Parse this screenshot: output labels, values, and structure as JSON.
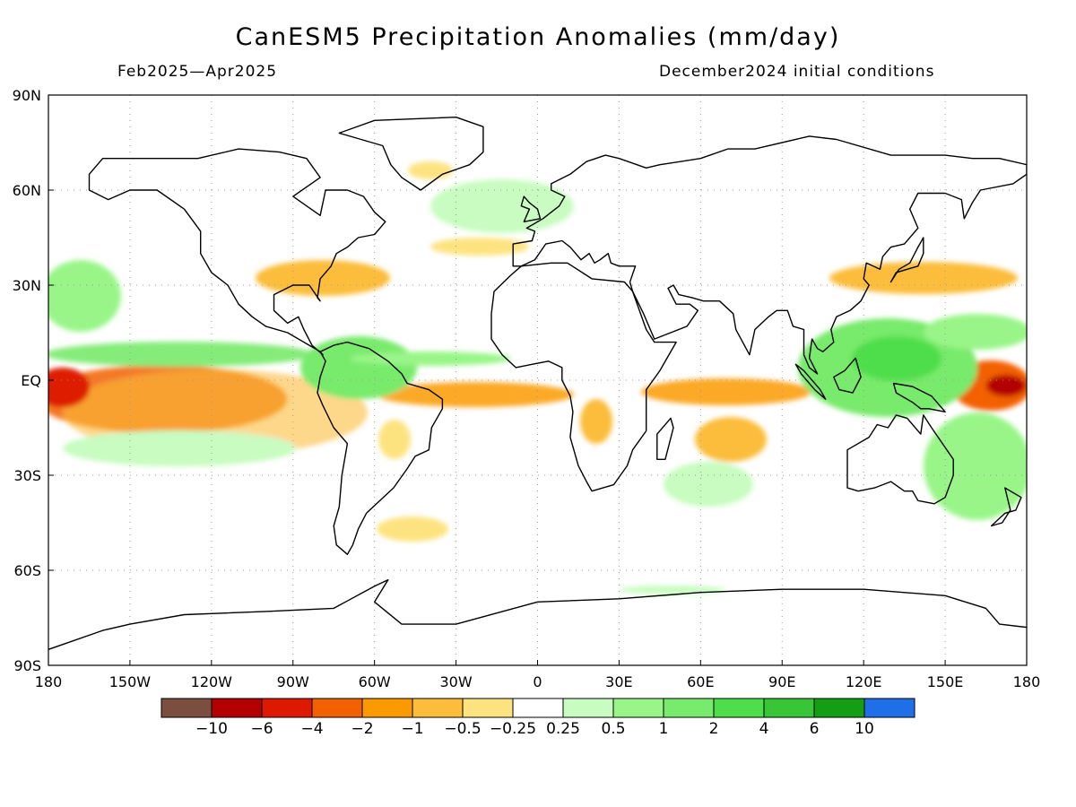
{
  "header": {
    "title": "CanESM5 Precipitation Anomalies (mm/day)",
    "period": "Feb2025—Apr2025",
    "initial_conditions": "December2024 initial conditions"
  },
  "map": {
    "projection": "equirectangular",
    "lon_range": [
      -180,
      180
    ],
    "lat_range": [
      -90,
      90
    ],
    "grid": "dotted",
    "lon_tick_labels": [
      "180",
      "150W",
      "120W",
      "90W",
      "60W",
      "30W",
      "0",
      "30E",
      "60E",
      "90E",
      "120E",
      "150E",
      "180"
    ],
    "lat_tick_labels": [
      "90N",
      "60N",
      "30N",
      "EQ",
      "30S",
      "60S",
      "90S"
    ],
    "anomaly_regions": [
      {
        "name": "central-pacific-dry",
        "lon": [
          -180,
          -120
        ],
        "lat": [
          -12,
          5
        ],
        "category": "-2"
      },
      {
        "name": "central-pacific-dry-core",
        "lon": [
          -180,
          -170
        ],
        "lat": [
          -6,
          2
        ],
        "category": "-4"
      },
      {
        "name": "west-pacific-dry",
        "lon": [
          155,
          180
        ],
        "lat": [
          -8,
          6
        ],
        "category": "-2"
      },
      {
        "name": "equatorial-atlantic-dry",
        "lon": [
          -40,
          10
        ],
        "lat": [
          -6,
          0
        ],
        "category": "-1"
      },
      {
        "name": "indian-ocean-dry",
        "lon": [
          45,
          95
        ],
        "lat": [
          -6,
          0
        ],
        "category": "-1"
      },
      {
        "name": "gulf-atlantic-dry",
        "lon": [
          -95,
          -50
        ],
        "lat": [
          24,
          38
        ],
        "category": "-1"
      },
      {
        "name": "kuroshio-dry",
        "lon": [
          120,
          180
        ],
        "lat": [
          28,
          40
        ],
        "category": "-1"
      },
      {
        "name": "pacific-itcz-wet",
        "lon": [
          -180,
          -90
        ],
        "lat": [
          6,
          16
        ],
        "category": "1"
      },
      {
        "name": "north-pacific-wet",
        "lon": [
          -180,
          -140
        ],
        "lat": [
          18,
          38
        ],
        "category": "1"
      },
      {
        "name": "maritime-continent-wet",
        "lon": [
          100,
          180
        ],
        "lat": [
          -30,
          20
        ],
        "category": "1"
      },
      {
        "name": "amazon-wet",
        "lon": [
          -80,
          -50
        ],
        "lat": [
          -6,
          10
        ],
        "category": "1"
      },
      {
        "name": "south-pacific-wet",
        "lon": [
          -180,
          -90
        ],
        "lat": [
          -30,
          -18
        ],
        "category": "0.5"
      }
    ]
  },
  "colorbar": {
    "colors": [
      "#7a4f3f",
      "#b30000",
      "#dd1a00",
      "#f26000",
      "#fa9a00",
      "#fbbd3b",
      "#fde37f",
      "#ffffff",
      "#c8fcc0",
      "#99f588",
      "#78ea6c",
      "#4fde4b",
      "#38c637",
      "#149e14",
      "#1f6fe8"
    ],
    "labels": [
      "−10",
      "−6",
      "−4",
      "−2",
      "−1",
      "−0.5",
      "−0.25",
      "0.25",
      "0.5",
      "1",
      "2",
      "4",
      "6",
      "10"
    ]
  }
}
